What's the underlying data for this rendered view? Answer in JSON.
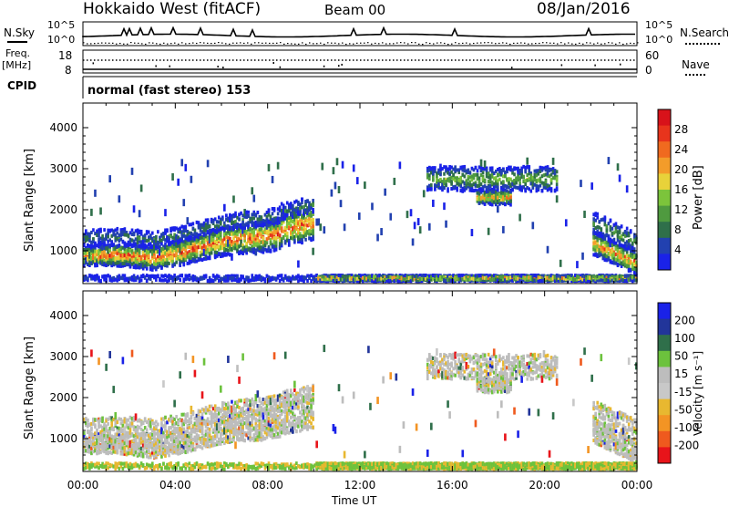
{
  "header": {
    "station": "Hokkaido West (fitACF)",
    "beam": "Beam 00",
    "date": "08/Jan/2016"
  },
  "noise_panel": {
    "left_label": "N.Sky",
    "right_label": "N.Search",
    "tick_top": "10^5",
    "tick_bottom": "10^0"
  },
  "freq_panel": {
    "left_label_line1": "Freq.",
    "left_label_line2": "[MHz]",
    "right_label": "Nave",
    "left_ticks": [
      "18",
      "8"
    ],
    "right_ticks": [
      "60",
      "0"
    ]
  },
  "cpid_panel": {
    "label": "CPID",
    "text": "normal (fast stereo) 153"
  },
  "colors": {
    "power_scale": [
      "#1a22e8",
      "#2241b0",
      "#2f6f4a",
      "#4f9a3f",
      "#7cc43b",
      "#e8d23a",
      "#f39c2a",
      "#f06a1f",
      "#e8341c",
      "#d8121a"
    ],
    "velocity_scale": [
      "#1a22e8",
      "#22359a",
      "#2f6f4a",
      "#6cc23d",
      "#bdbdbd",
      "#c8c8c8",
      "#e8b830",
      "#f39424",
      "#ef5a1e",
      "#e8141a"
    ]
  },
  "chart_data": [
    {
      "type": "heatmap",
      "name": "power",
      "ylabel": "Slant Range [km]",
      "yticks": [
        "1000",
        "2000",
        "3000",
        "4000"
      ],
      "ylim": [
        200,
        4600
      ],
      "xlim": [
        "00:00",
        "24:00"
      ],
      "colorbar_label": "Power [dB]",
      "colorbar_ticks": [
        "4",
        "8",
        "12",
        "16",
        "20",
        "24",
        "28"
      ],
      "colorbar_range": [
        0,
        32
      ]
    },
    {
      "type": "heatmap",
      "name": "velocity",
      "ylabel": "Slant Range [km]",
      "yticks": [
        "1000",
        "2000",
        "3000",
        "4000"
      ],
      "ylim": [
        200,
        4600
      ],
      "xlim": [
        "00:00",
        "24:00"
      ],
      "xlabel": "Time UT",
      "xticks": [
        "00:00",
        "04:00",
        "08:00",
        "12:00",
        "16:00",
        "20:00",
        "00:00"
      ],
      "colorbar_label": "Velocity [m s⁻¹]",
      "colorbar_ticks": [
        "200",
        "100",
        "50",
        "15",
        "-15",
        "-50",
        "-100",
        "-200"
      ]
    }
  ]
}
